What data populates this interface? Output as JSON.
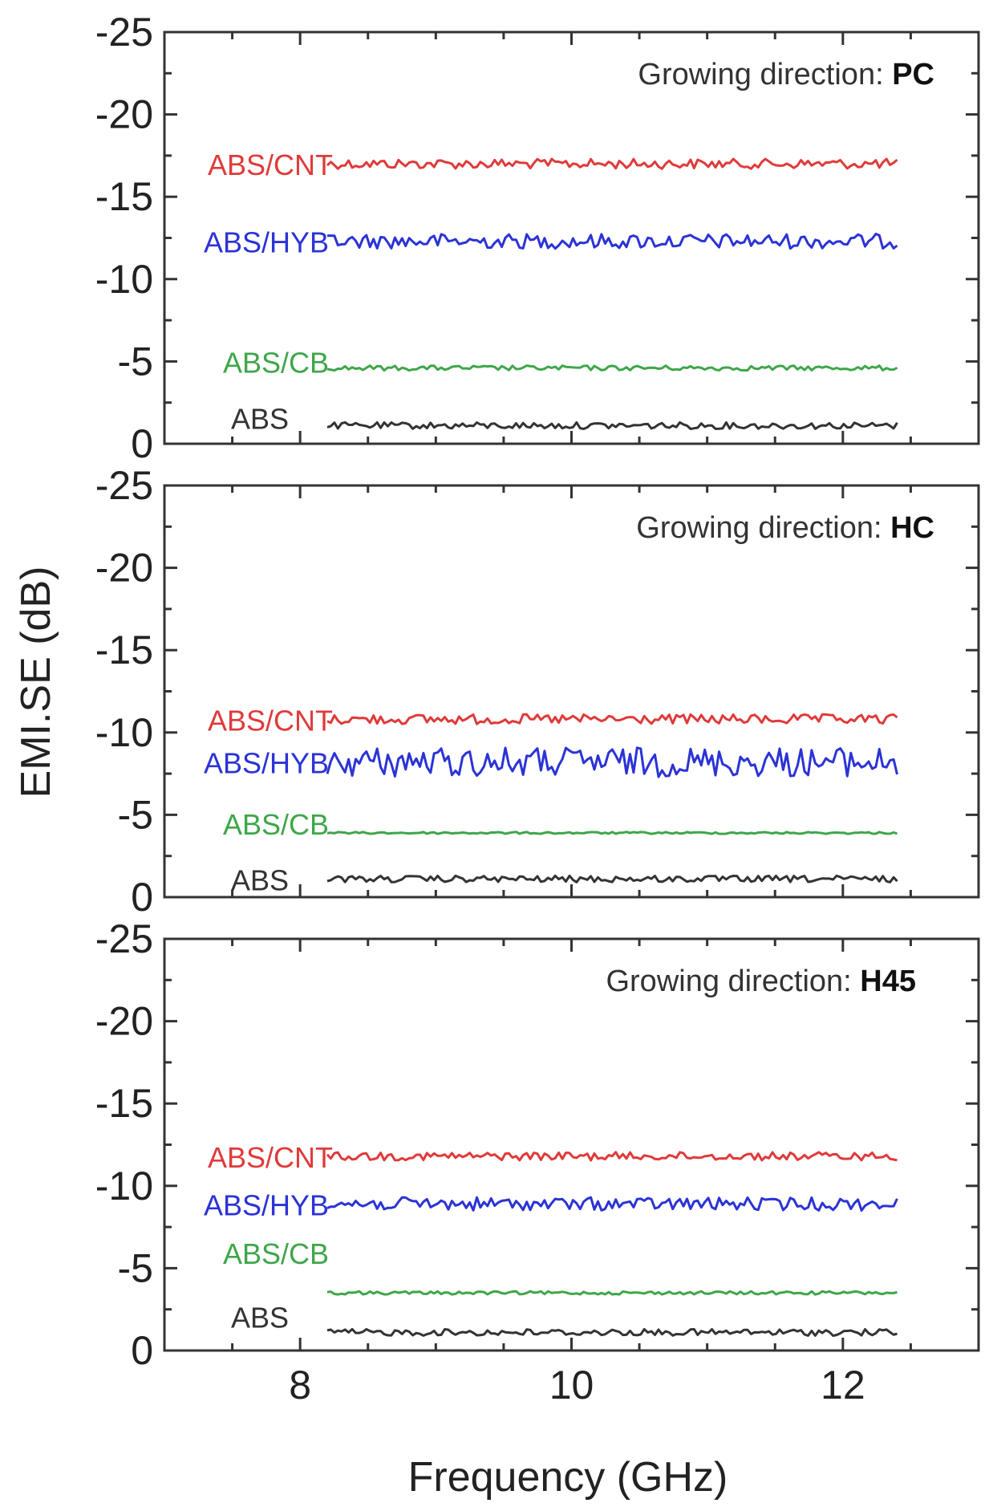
{
  "colors": {
    "ABS/CNT": "#e03a3a",
    "ABS/HYB": "#2b33d6",
    "ABS/CB": "#3fa64a",
    "ABS": "#333333",
    "axis": "#333333"
  },
  "chart_data": {
    "type": "line",
    "xlabel": "Frequency (GHz)",
    "ylabel": "EMI.SE (dB)",
    "xlim": [
      7,
      13
    ],
    "ylim": [
      0,
      -25
    ],
    "xticks": [
      8,
      10,
      12
    ],
    "yticks": [
      0,
      -5,
      -10,
      -15,
      -20,
      -25
    ],
    "grid": false,
    "panels": [
      {
        "direction_prefix": "Growing direction: ",
        "direction_value": "PC",
        "series": [
          {
            "name": "ABS/CNT",
            "x": [
              8.2,
              12.4
            ],
            "mean": -17.0,
            "noise": 0.3
          },
          {
            "name": "ABS/HYB",
            "x": [
              8.2,
              12.4
            ],
            "mean": -12.3,
            "noise": 0.45
          },
          {
            "name": "ABS/CB",
            "x": [
              8.2,
              12.4
            ],
            "mean": -4.6,
            "noise": 0.15
          },
          {
            "name": "ABS",
            "x": [
              8.2,
              12.4
            ],
            "mean": -1.1,
            "noise": 0.2
          }
        ]
      },
      {
        "direction_prefix": "Growing direction: ",
        "direction_value": "HC",
        "series": [
          {
            "name": "ABS/CNT",
            "x": [
              8.2,
              12.4
            ],
            "mean": -10.8,
            "noise": 0.3
          },
          {
            "name": "ABS/HYB",
            "x": [
              8.2,
              12.4
            ],
            "mean": -8.2,
            "noise": 0.9
          },
          {
            "name": "ABS/CB",
            "x": [
              8.2,
              12.4
            ],
            "mean": -3.9,
            "noise": 0.06
          },
          {
            "name": "ABS",
            "x": [
              8.2,
              12.4
            ],
            "mean": -1.1,
            "noise": 0.2
          }
        ]
      },
      {
        "direction_prefix": "Growing direction: ",
        "direction_value": "H45",
        "series": [
          {
            "name": "ABS/CNT",
            "x": [
              8.2,
              12.4
            ],
            "mean": -11.8,
            "noise": 0.25
          },
          {
            "name": "ABS/HYB",
            "x": [
              8.2,
              12.4
            ],
            "mean": -8.9,
            "noise": 0.4
          },
          {
            "name": "ABS/CB",
            "x": [
              8.2,
              12.4
            ],
            "mean": -3.5,
            "noise": 0.1
          },
          {
            "name": "ABS",
            "x": [
              8.2,
              12.4
            ],
            "mean": -1.1,
            "noise": 0.2
          }
        ]
      }
    ]
  }
}
